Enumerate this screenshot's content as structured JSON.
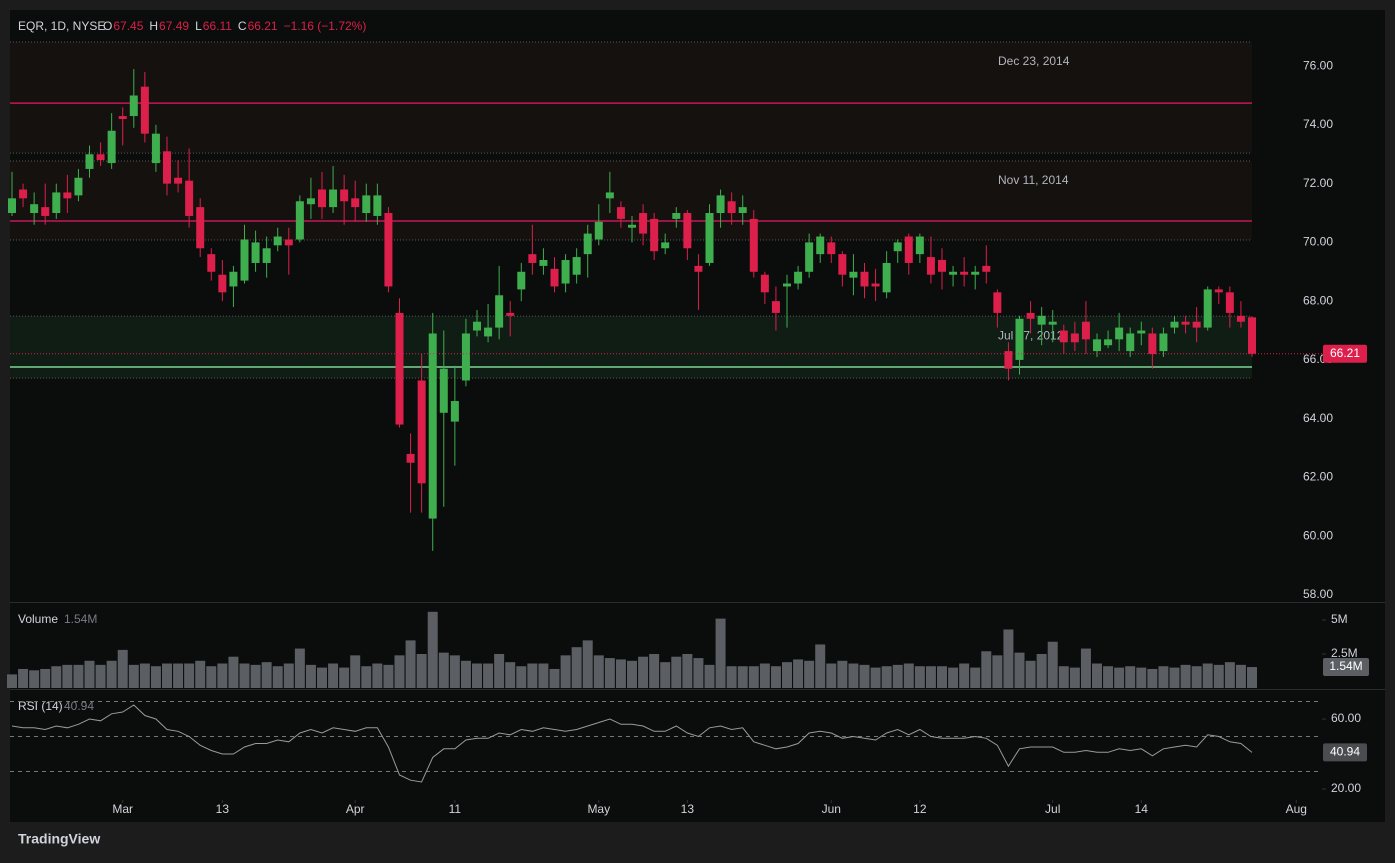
{
  "header": {
    "symbol": "EQR, 1D, NYSE",
    "open_label": "O",
    "high_label": "H",
    "low_label": "L",
    "close_label": "C",
    "change": "−1.16 (−1.72%)",
    "brand": "TradingView"
  },
  "chart_data": [
    {
      "type": "candlestick",
      "up_color": "#3fae4f",
      "down_color": "#dd1f4b",
      "open": [
        71.0,
        71.8,
        71.0,
        71.2,
        71.0,
        71.7,
        71.6,
        72.5,
        73.0,
        72.7,
        74.3,
        74.3,
        75.3,
        72.7,
        73.1,
        72.2,
        72.1,
        71.2,
        69.6,
        68.9,
        68.5,
        68.7,
        69.3,
        69.3,
        69.9,
        70.1,
        70.1,
        71.3,
        71.8,
        71.2,
        71.8,
        71.5,
        71.0,
        70.9,
        71.0,
        67.6,
        62.8,
        65.3,
        60.6,
        64.2,
        63.9,
        65.3,
        67.0,
        66.8,
        67.1,
        67.6,
        68.4,
        69.6,
        69.2,
        69.1,
        68.6,
        68.9,
        69.6,
        70.1,
        71.5,
        71.2,
        70.5,
        71.0,
        70.8,
        69.8,
        70.8,
        71.0,
        69.2,
        69.3,
        71.0,
        71.4,
        71.0,
        70.8,
        68.9,
        68.0,
        68.5,
        68.6,
        69.0,
        69.6,
        70.0,
        69.6,
        68.8,
        69.0,
        68.6,
        68.3,
        69.7,
        70.2,
        69.6,
        69.5,
        69.4,
        68.9,
        69.0,
        68.9,
        69.2,
        68.3,
        66.3,
        66.0,
        67.6,
        67.2,
        67.2,
        67.0,
        66.9,
        67.3,
        66.3,
        66.5,
        66.7,
        66.3,
        66.9,
        66.9,
        66.3,
        67.1,
        67.3,
        67.3,
        67.1,
        68.4,
        68.3,
        67.5,
        67.45
      ],
      "high": [
        72.4,
        72.0,
        71.7,
        72.0,
        72.0,
        72.3,
        72.5,
        73.3,
        73.4,
        74.4,
        74.6,
        75.9,
        75.8,
        74.0,
        73.6,
        72.8,
        73.2,
        71.5,
        69.8,
        69.4,
        69.2,
        70.6,
        70.4,
        70.2,
        70.5,
        70.5,
        71.6,
        72.2,
        72.4,
        72.6,
        72.3,
        72.1,
        72.0,
        72.0,
        71.2,
        68.1,
        63.5,
        66.2,
        67.6,
        67.0,
        65.8,
        67.4,
        67.7,
        67.9,
        69.2,
        68.0,
        69.3,
        70.6,
        69.8,
        69.5,
        69.6,
        69.8,
        70.6,
        71.3,
        72.4,
        71.4,
        70.9,
        71.3,
        71.0,
        70.3,
        71.2,
        71.1,
        69.6,
        71.3,
        71.8,
        71.7,
        71.6,
        71.1,
        69.0,
        68.5,
        68.9,
        69.2,
        70.3,
        70.3,
        70.2,
        69.7,
        69.6,
        69.3,
        69.1,
        69.7,
        70.1,
        70.3,
        70.3,
        70.2,
        69.8,
        69.2,
        69.5,
        69.2,
        69.9,
        68.4,
        66.6,
        67.5,
        68.0,
        67.8,
        67.7,
        67.2,
        67.3,
        68.0,
        66.9,
        67.0,
        67.6,
        67.1,
        67.3,
        67.1,
        67.1,
        67.5,
        67.5,
        67.8,
        68.5,
        68.5,
        68.5,
        68.0,
        67.49
      ],
      "low": [
        70.9,
        71.2,
        70.6,
        70.6,
        70.8,
        71.0,
        71.4,
        72.2,
        72.6,
        72.5,
        73.3,
        73.9,
        73.4,
        72.4,
        71.6,
        71.7,
        70.5,
        69.5,
        68.7,
        68.0,
        67.8,
        68.6,
        69.0,
        68.8,
        69.7,
        68.9,
        70.0,
        70.8,
        70.8,
        71.0,
        70.6,
        70.7,
        70.7,
        70.6,
        68.3,
        63.7,
        60.8,
        60.8,
        59.5,
        61.0,
        62.4,
        65.1,
        66.8,
        66.6,
        66.7,
        66.8,
        68.0,
        68.9,
        68.9,
        68.3,
        68.3,
        68.6,
        68.8,
        69.9,
        71.0,
        70.5,
        70.0,
        69.9,
        69.4,
        69.6,
        70.5,
        69.4,
        67.7,
        69.2,
        70.5,
        70.6,
        70.6,
        68.8,
        67.9,
        67.0,
        67.1,
        68.4,
        68.8,
        69.3,
        69.3,
        68.5,
        68.2,
        68.1,
        68.0,
        68.1,
        69.3,
        68.9,
        69.3,
        68.6,
        68.4,
        68.5,
        68.5,
        68.4,
        68.6,
        67.1,
        65.3,
        65.5,
        66.9,
        66.5,
        66.6,
        66.2,
        66.3,
        66.2,
        66.1,
        66.4,
        66.3,
        66.1,
        66.5,
        65.7,
        66.1,
        66.9,
        66.9,
        66.6,
        67.0,
        67.9,
        67.1,
        67.1,
        66.11
      ],
      "close": [
        71.5,
        71.5,
        71.3,
        70.9,
        71.7,
        71.5,
        72.2,
        73.0,
        72.8,
        73.8,
        74.2,
        75.0,
        73.7,
        73.7,
        72.0,
        72.0,
        70.9,
        69.8,
        69.0,
        68.3,
        69.0,
        70.1,
        70.0,
        69.8,
        70.2,
        69.9,
        71.4,
        71.5,
        71.2,
        71.8,
        71.4,
        71.2,
        71.6,
        71.6,
        68.5,
        63.8,
        62.5,
        61.8,
        66.9,
        65.7,
        64.6,
        66.9,
        67.3,
        67.1,
        68.2,
        67.5,
        69.0,
        69.3,
        69.4,
        68.5,
        69.4,
        69.5,
        70.3,
        70.7,
        71.7,
        70.8,
        70.6,
        70.3,
        69.7,
        70.0,
        71.0,
        69.8,
        69.0,
        71.0,
        71.6,
        71.0,
        71.2,
        69.0,
        68.3,
        67.6,
        68.6,
        69.0,
        70.0,
        70.2,
        69.6,
        68.9,
        69.0,
        68.5,
        68.5,
        69.3,
        70.0,
        69.3,
        70.2,
        68.9,
        69.0,
        69.0,
        68.9,
        69.0,
        69.0,
        67.6,
        65.7,
        67.4,
        67.4,
        67.5,
        67.3,
        66.6,
        66.6,
        66.7,
        66.7,
        66.7,
        67.1,
        66.9,
        67.0,
        66.2,
        66.9,
        67.3,
        67.2,
        67.1,
        68.4,
        68.3,
        67.6,
        67.3,
        66.21
      ],
      "ylim": [
        57.76,
        77.91
      ],
      "yticks": [
        {
          "value": 58,
          "label": "58.00"
        },
        {
          "value": 60,
          "label": "60.00"
        },
        {
          "value": 62,
          "label": "62.00"
        },
        {
          "value": 64,
          "label": "64.00"
        },
        {
          "value": 66,
          "label": "66.00"
        },
        {
          "value": 68,
          "label": "68.00"
        },
        {
          "value": 70,
          "label": "70.00"
        },
        {
          "value": 72,
          "label": "72.00"
        },
        {
          "value": 74,
          "label": "74.00"
        },
        {
          "value": 76,
          "label": "76.00"
        }
      ],
      "xticks": [
        {
          "value": 10,
          "label": "Mar"
        },
        {
          "value": 19,
          "label": "13"
        },
        {
          "value": 31,
          "label": "Apr"
        },
        {
          "value": 40,
          "label": "11"
        },
        {
          "value": 53,
          "label": "May"
        },
        {
          "value": 61,
          "label": "13"
        },
        {
          "value": 74,
          "label": "Jun"
        },
        {
          "value": 82,
          "label": "12"
        },
        {
          "value": 94,
          "label": "Jul"
        },
        {
          "value": 102,
          "label": "14"
        },
        {
          "value": 116,
          "label": "Aug"
        }
      ],
      "levels": [
        {
          "label": "Dec 23, 2014",
          "value": 74.74,
          "zone": [
            73.04,
            76.82
          ],
          "color": "#c2185b",
          "zone_color": "#15110f"
        },
        {
          "label": "Nov 11, 2014",
          "value": 70.73,
          "zone": [
            70.08,
            72.77
          ],
          "color": "#c2185b",
          "zone_color": "#15110f"
        },
        {
          "label": "Jul 17, 2012",
          "value": 65.76,
          "zone": [
            65.38,
            67.49
          ],
          "color": "#7fd39a",
          "zone_color": "#0f1d15"
        }
      ]
    },
    {
      "type": "bar",
      "title": "Volume",
      "color": "#5b5e63",
      "values": [
        1000000,
        1400000,
        1300000,
        1400000,
        1600000,
        1700000,
        1700000,
        2000000,
        1700000,
        2000000,
        2800000,
        1700000,
        1800000,
        1600000,
        1800000,
        1800000,
        1800000,
        2000000,
        1600000,
        1800000,
        2300000,
        1800000,
        1700000,
        1900000,
        1600000,
        1800000,
        2900000,
        1700000,
        1500000,
        1800000,
        1500000,
        2400000,
        1600000,
        1800000,
        1700000,
        2400000,
        3500000,
        2500000,
        5600000,
        2600000,
        2400000,
        2000000,
        1800000,
        1800000,
        2500000,
        1900000,
        1600000,
        1800000,
        1800000,
        1400000,
        2400000,
        3000000,
        3500000,
        2400000,
        2200000,
        2100000,
        2000000,
        2300000,
        2500000,
        1900000,
        2300000,
        2500000,
        2200000,
        1700000,
        5100000,
        1600000,
        1600000,
        1600000,
        1800000,
        1600000,
        1900000,
        2100000,
        2000000,
        3200000,
        1800000,
        2000000,
        1800000,
        1700000,
        1500000,
        1600000,
        1700000,
        1800000,
        1600000,
        1600000,
        1600000,
        1500000,
        1800000,
        1500000,
        2700000,
        2400000,
        4300000,
        2600000,
        2000000,
        2500000,
        3400000,
        1600000,
        1500000,
        2900000,
        1800000,
        1600000,
        1500000,
        1600000,
        1500000,
        1400000,
        1600000,
        1500000,
        1700000,
        1600000,
        1800000,
        1700000,
        1900000,
        1700000,
        1540000
      ],
      "value_labels": [
        null,
        null,
        null,
        null,
        null,
        null,
        null,
        null,
        null,
        null,
        null,
        null,
        null,
        null,
        null,
        null,
        null,
        null,
        null,
        null,
        null,
        null,
        null,
        null,
        null,
        null,
        null,
        null,
        null,
        null,
        null,
        null,
        null,
        null,
        null,
        null,
        null,
        null,
        null,
        null,
        null,
        null,
        null,
        null,
        null,
        null,
        null,
        null,
        null,
        null,
        null,
        null,
        null,
        null,
        null,
        null,
        null,
        null,
        null,
        null,
        null,
        null,
        null,
        null,
        null,
        null,
        null,
        null,
        null,
        null,
        null,
        null,
        null,
        null,
        null,
        null,
        null,
        null,
        null,
        null,
        null,
        null,
        null,
        null,
        null,
        null,
        null,
        null,
        null,
        null,
        null,
        null,
        null,
        null,
        null,
        null,
        null,
        null,
        null,
        null,
        null,
        null,
        null,
        null,
        null,
        null,
        null,
        null,
        null,
        null,
        null,
        null,
        "1.54M"
      ],
      "ylim": [
        0,
        6320000
      ],
      "yticks": [
        {
          "value": 2500000,
          "label": "2.5M"
        },
        {
          "value": 5000000,
          "label": "5M"
        }
      ]
    },
    {
      "type": "line",
      "title": "RSI (14)",
      "color": "#9a9a9a",
      "values": [
        56,
        55,
        55,
        54,
        56,
        55,
        57,
        60,
        59,
        63,
        64,
        68,
        62,
        60,
        54,
        53,
        50,
        45,
        42,
        40,
        40,
        44,
        46,
        46,
        48,
        47,
        52,
        54,
        52,
        55,
        54,
        53,
        55,
        55,
        44,
        28,
        25,
        24,
        38,
        43,
        43,
        48,
        49,
        49,
        52,
        51,
        54,
        53,
        55,
        54,
        53,
        54,
        56,
        58,
        60,
        57,
        57,
        56,
        53,
        53,
        56,
        52,
        50,
        55,
        56,
        54,
        55,
        47,
        45,
        43,
        44,
        46,
        52,
        53,
        52,
        49,
        50,
        49,
        48,
        52,
        54,
        51,
        54,
        50,
        49,
        49,
        49,
        50,
        49,
        45,
        33,
        43,
        44,
        44,
        44,
        41,
        41,
        42,
        41,
        41,
        43,
        42,
        43,
        39,
        43,
        44,
        45,
        44,
        51,
        50,
        47,
        46,
        40.94
      ],
      "ylim": [
        13.7,
        76.6
      ],
      "yticks": [
        {
          "value": 20,
          "label": "20.00"
        },
        {
          "value": 60,
          "label": "60.00"
        }
      ],
      "levels": [
        30,
        50,
        70
      ]
    }
  ]
}
